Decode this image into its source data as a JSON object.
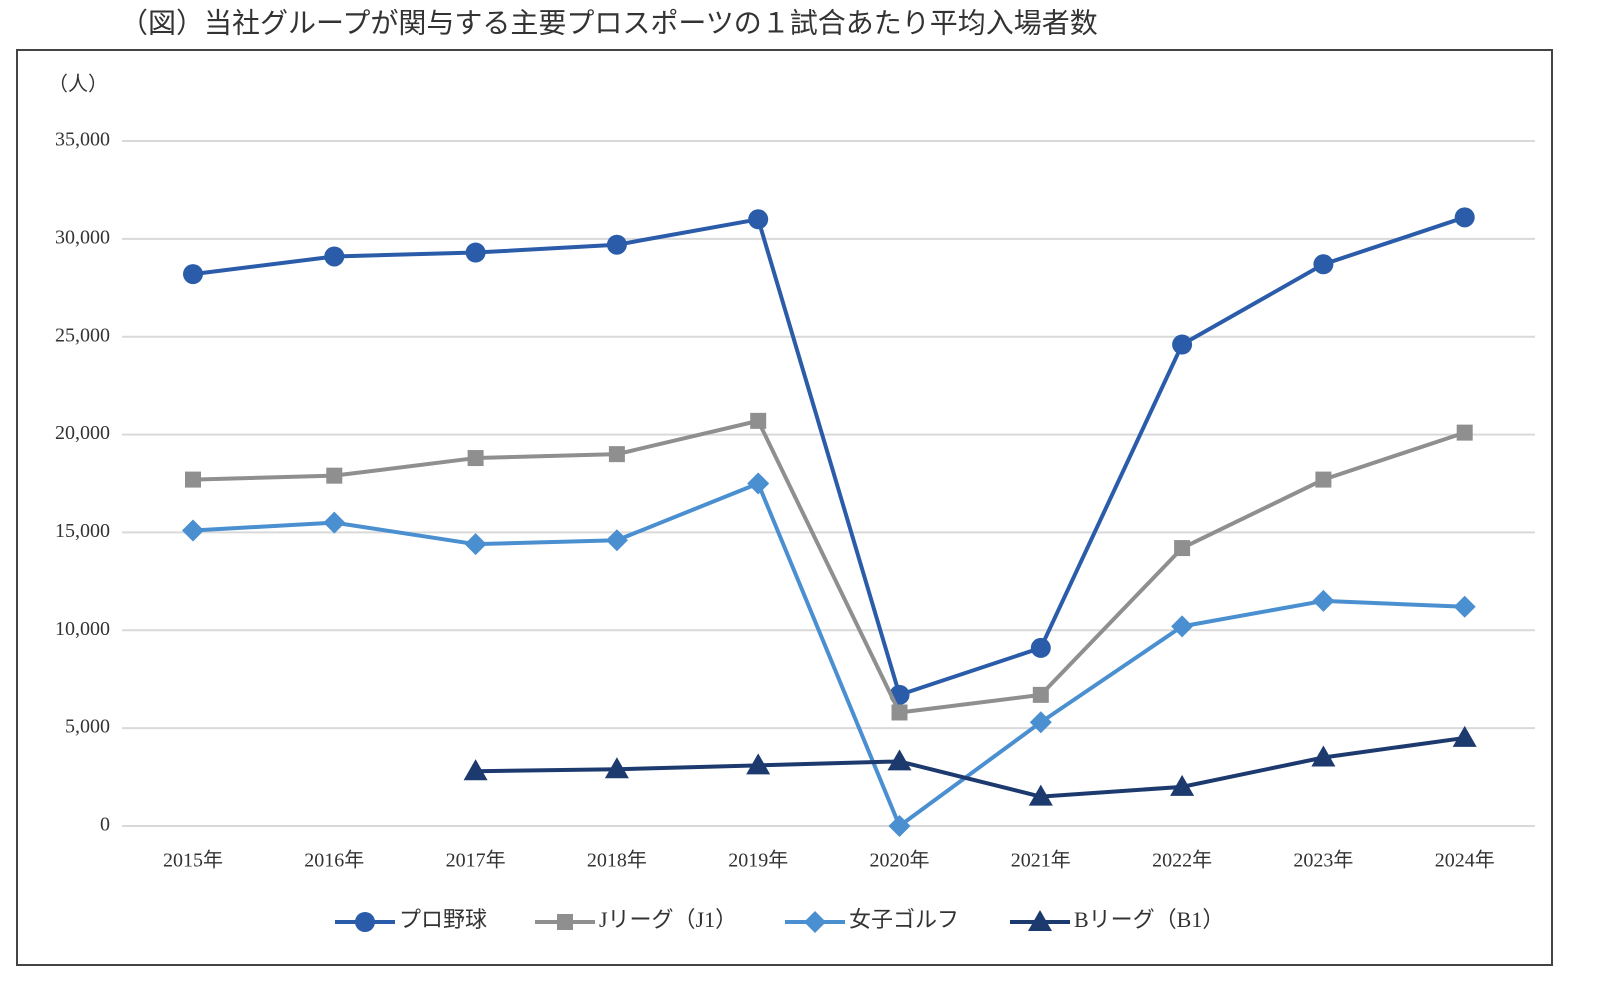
{
  "chart_data": {
    "type": "line",
    "title": "（図）当社グループが関与する主要プロスポーツの１試合あたり平均入場者数",
    "y_unit": "（人）",
    "categories": [
      "2015年",
      "2016年",
      "2017年",
      "2018年",
      "2019年",
      "2020年",
      "2021年",
      "2022年",
      "2023年",
      "2024年"
    ],
    "series": [
      {
        "name": "プロ野球",
        "color": "#2a5caa",
        "marker": "circle",
        "values": [
          28200,
          29100,
          29300,
          29700,
          31000,
          6700,
          9100,
          24600,
          28700,
          31100
        ]
      },
      {
        "name": "Jリーグ（J1）",
        "color": "#8f8f8f",
        "marker": "square",
        "values": [
          17700,
          17900,
          18800,
          19000,
          20700,
          5800,
          6700,
          14200,
          17700,
          20100
        ]
      },
      {
        "name": "女子ゴルフ",
        "color": "#4a8fd0",
        "marker": "diamond",
        "values": [
          15100,
          15500,
          14400,
          14600,
          17500,
          0,
          5300,
          10200,
          11500,
          11200
        ]
      },
      {
        "name": "Bリーグ（B1）",
        "color": "#1d3a6e",
        "marker": "triangle",
        "values": [
          null,
          null,
          2800,
          2900,
          3100,
          3300,
          1500,
          2000,
          3500,
          4500
        ]
      }
    ],
    "ylim": [
      0,
      35000
    ],
    "yticks": [
      0,
      {
        "value": 5000,
        "label": "5,000"
      },
      {
        "value": 10000,
        "label": "10,000"
      },
      {
        "value": 15000,
        "label": "15,000"
      },
      {
        "value": 20000,
        "label": "20,000"
      },
      {
        "value": 25000,
        "label": "25,000"
      },
      {
        "value": 30000,
        "label": "30,000"
      },
      {
        "value": 35000,
        "label": "35,000"
      }
    ],
    "grid": true
  }
}
